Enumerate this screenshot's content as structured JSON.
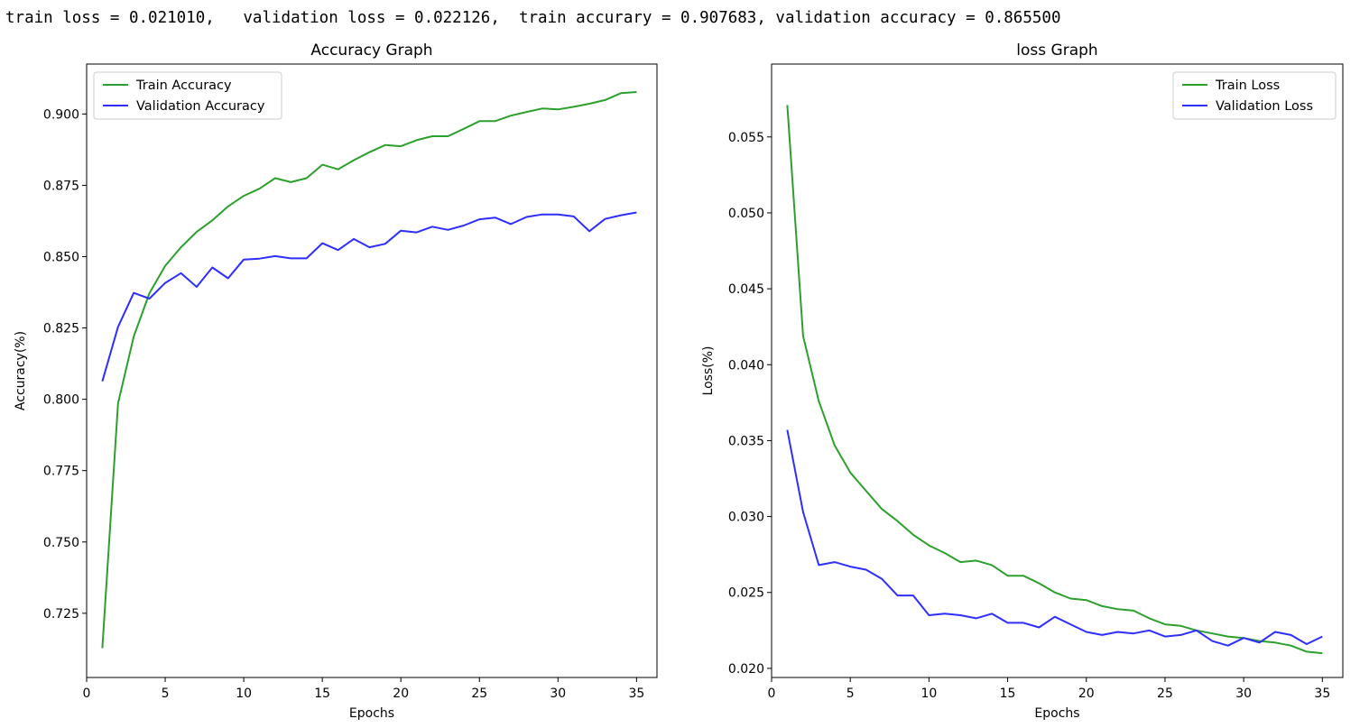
{
  "output": {
    "summary_line": "train loss = 0.021010,   validation loss = 0.022126,  train accurary = 0.907683, validation accuracy = 0.865500"
  },
  "colors": {
    "train": "#2ca02c",
    "validation": "#2e2eff"
  },
  "chart_data": [
    {
      "type": "line",
      "title": "Accuracy Graph",
      "xlabel": "Epochs",
      "ylabel": "Accuracy(%)",
      "xlim": [
        0,
        36.3
      ],
      "ylim": [
        0.7025,
        0.9175
      ],
      "xticks": [
        0,
        5,
        10,
        15,
        20,
        25,
        30,
        35
      ],
      "yticks": [
        0.725,
        0.75,
        0.775,
        0.8,
        0.825,
        0.85,
        0.875,
        0.9
      ],
      "ytick_labels": [
        "0.725",
        "0.750",
        "0.775",
        "0.800",
        "0.825",
        "0.850",
        "0.875",
        "0.900"
      ],
      "grid": false,
      "legend": "top-left",
      "x": [
        1,
        2,
        3,
        4,
        5,
        6,
        7,
        8,
        9,
        10,
        11,
        12,
        13,
        14,
        15,
        16,
        17,
        18,
        19,
        20,
        21,
        22,
        23,
        24,
        25,
        26,
        27,
        28,
        29,
        30,
        31,
        32,
        33,
        34,
        35
      ],
      "series": [
        {
          "name": "Train Accuracy",
          "color": "#2ca02c",
          "values": [
            0.7128,
            0.7986,
            0.822,
            0.8372,
            0.8468,
            0.8533,
            0.8587,
            0.8627,
            0.8676,
            0.8713,
            0.8738,
            0.8775,
            0.8761,
            0.8775,
            0.8822,
            0.8806,
            0.8838,
            0.8866,
            0.8891,
            0.8887,
            0.8908,
            0.8922,
            0.8922,
            0.8948,
            0.8975,
            0.8975,
            0.8994,
            0.9007,
            0.9019,
            0.9016,
            0.9025,
            0.9036,
            0.9049,
            0.9073,
            0.9077
          ]
        },
        {
          "name": "Validation Accuracy",
          "color": "#2e2eff",
          "values": [
            0.8063,
            0.8254,
            0.8373,
            0.8353,
            0.8408,
            0.8442,
            0.8394,
            0.8462,
            0.8424,
            0.849,
            0.8493,
            0.8502,
            0.8494,
            0.8494,
            0.8547,
            0.8523,
            0.8562,
            0.8533,
            0.8545,
            0.8591,
            0.8585,
            0.8605,
            0.8594,
            0.8609,
            0.8631,
            0.8637,
            0.8614,
            0.8639,
            0.8648,
            0.8648,
            0.8641,
            0.8589,
            0.8632,
            0.8645,
            0.8655
          ]
        }
      ]
    },
    {
      "type": "line",
      "title": "loss Graph",
      "xlabel": "Epochs",
      "ylabel": "Loss(%)",
      "xlim": [
        0,
        36.3
      ],
      "ylim": [
        0.0194,
        0.0598
      ],
      "xticks": [
        0,
        5,
        10,
        15,
        20,
        25,
        30,
        35
      ],
      "yticks": [
        0.02,
        0.025,
        0.03,
        0.035,
        0.04,
        0.045,
        0.05,
        0.055
      ],
      "ytick_labels": [
        "0.020",
        "0.025",
        "0.030",
        "0.035",
        "0.040",
        "0.045",
        "0.050",
        "0.055"
      ],
      "grid": false,
      "legend": "top-right",
      "x": [
        1,
        2,
        3,
        4,
        5,
        6,
        7,
        8,
        9,
        10,
        11,
        12,
        13,
        14,
        15,
        16,
        17,
        18,
        19,
        20,
        21,
        22,
        23,
        24,
        25,
        26,
        27,
        28,
        29,
        30,
        31,
        32,
        33,
        34,
        35
      ],
      "series": [
        {
          "name": "Train Loss",
          "color": "#2ca02c",
          "values": [
            0.0571,
            0.0419,
            0.0376,
            0.0347,
            0.0329,
            0.0317,
            0.0305,
            0.0297,
            0.0288,
            0.0281,
            0.0276,
            0.027,
            0.0271,
            0.0268,
            0.0261,
            0.0261,
            0.0256,
            0.025,
            0.0246,
            0.0245,
            0.0241,
            0.0239,
            0.0238,
            0.0233,
            0.0229,
            0.0228,
            0.0225,
            0.0223,
            0.0221,
            0.022,
            0.0218,
            0.0217,
            0.0215,
            0.0211,
            0.021
          ]
        },
        {
          "name": "Validation Loss",
          "color": "#2e2eff",
          "values": [
            0.0357,
            0.0303,
            0.0268,
            0.027,
            0.0267,
            0.0265,
            0.0259,
            0.0248,
            0.0248,
            0.0235,
            0.0236,
            0.0235,
            0.0233,
            0.0236,
            0.023,
            0.023,
            0.0227,
            0.0234,
            0.0229,
            0.0224,
            0.0222,
            0.0224,
            0.0223,
            0.0225,
            0.0221,
            0.0222,
            0.0225,
            0.0218,
            0.0215,
            0.022,
            0.0217,
            0.0224,
            0.0222,
            0.0216,
            0.0221
          ]
        }
      ]
    }
  ]
}
